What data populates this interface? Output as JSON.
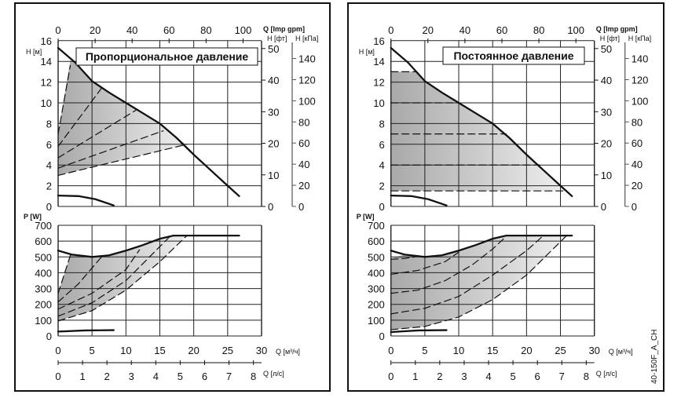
{
  "axes": {
    "h_m_label": "H [м]",
    "h_ft_label": "H [фт]",
    "h_kpa_label": "H [кПа]",
    "q_imp_label": "Q [Imp gpm]",
    "q_m3h_label": "Q [м³/ч]",
    "q_ls_label": "Q [л/с]",
    "p_label": "P [W]",
    "h_m_ticks": [
      "0",
      "2",
      "4",
      "6",
      "8",
      "10",
      "12",
      "14",
      "16"
    ],
    "h_ft_ticks": [
      "0",
      "10",
      "20",
      "30",
      "40",
      "50"
    ],
    "h_kpa_ticks": [
      "0",
      "20",
      "40",
      "60",
      "80",
      "100",
      "120",
      "140"
    ],
    "q_imp_ticks": [
      "0",
      "20",
      "40",
      "60",
      "80",
      "100"
    ],
    "q_m3h_ticks": [
      "0",
      "5",
      "10",
      "15",
      "20",
      "25",
      "30"
    ],
    "q_ls_ticks": [
      "0",
      "1",
      "2",
      "3",
      "4",
      "5",
      "6",
      "7",
      "8"
    ],
    "p_ticks": [
      "0",
      "100",
      "200",
      "300",
      "400",
      "500",
      "600",
      "700"
    ]
  },
  "panels": [
    {
      "title": "Пропорциональное давление"
    },
    {
      "title": "Постоянное давление"
    }
  ],
  "model_code": "40-150F_A_CH",
  "colors": {
    "curve": "#111111",
    "grid": "#222222",
    "shade_dark": "#a9a9a9",
    "shade_light": "#efefef"
  },
  "chart_data": [
    {
      "type": "line",
      "panel": 0,
      "title": "Пропорциональное давление",
      "xlabel": "Q [м³/ч]",
      "ylabel": "H [м]",
      "xlim": [
        0,
        30
      ],
      "ylim": [
        0,
        16
      ],
      "grid": true,
      "series": [
        {
          "style": "solid",
          "points": [
            [
              0,
              15.3
            ],
            [
              2.5,
              13.9
            ],
            [
              5,
              12.1
            ],
            [
              7.5,
              11
            ],
            [
              10,
              10
            ],
            [
              12.5,
              9
            ],
            [
              15,
              8
            ],
            [
              17.5,
              6.6
            ],
            [
              20,
              5
            ],
            [
              22.5,
              3.5
            ],
            [
              25,
              2
            ],
            [
              26.7,
              1
            ]
          ]
        },
        {
          "style": "solid",
          "points": [
            [
              0,
              1.05
            ],
            [
              3,
              1.0
            ],
            [
              5.5,
              0.7
            ],
            [
              8.2,
              0.1
            ]
          ]
        },
        {
          "style": "dashed",
          "points": [
            [
              0,
              3
            ],
            [
              19,
              6
            ]
          ]
        },
        {
          "style": "dashed",
          "points": [
            [
              0,
              3.7
            ],
            [
              15.5,
              7.3
            ]
          ]
        },
        {
          "style": "dashed",
          "points": [
            [
              0,
              4.7
            ],
            [
              11.5,
              9.3
            ]
          ]
        },
        {
          "style": "dashed",
          "points": [
            [
              0,
              5.8
            ],
            [
              6.5,
              11.5
            ]
          ]
        },
        {
          "style": "dashed",
          "points": [
            [
              0,
              7
            ],
            [
              1.8,
              13.6
            ]
          ]
        }
      ],
      "shaded_region": [
        [
          0,
          3
        ],
        [
          19,
          6
        ],
        [
          17.5,
          6.6
        ],
        [
          15,
          8
        ],
        [
          12.5,
          9
        ],
        [
          10,
          10
        ],
        [
          7.5,
          11
        ],
        [
          5,
          12.1
        ],
        [
          2.5,
          13.9
        ],
        [
          1.8,
          14.1
        ],
        [
          0,
          7
        ]
      ]
    },
    {
      "type": "line",
      "panel": 0,
      "xlabel": "Q [м³/ч]",
      "ylabel": "P [W]",
      "xlim": [
        0,
        30
      ],
      "ylim": [
        0,
        700
      ],
      "grid": true,
      "series": [
        {
          "style": "solid",
          "points": [
            [
              0,
              540
            ],
            [
              2,
              515
            ],
            [
              5,
              500
            ],
            [
              7.5,
              510
            ],
            [
              10,
              540
            ],
            [
              12.5,
              575
            ],
            [
              15,
              615
            ],
            [
              17,
              635
            ],
            [
              26.7,
              635
            ]
          ]
        },
        {
          "style": "solid",
          "points": [
            [
              0,
              28
            ],
            [
              4,
              35
            ],
            [
              8.2,
              37
            ]
          ]
        },
        {
          "style": "dashed",
          "points": [
            [
              0,
              270
            ],
            [
              1.8,
              510
            ]
          ]
        },
        {
          "style": "dashed",
          "points": [
            [
              0,
              215
            ],
            [
              3,
              330
            ],
            [
              6.5,
              505
            ]
          ]
        },
        {
          "style": "dashed",
          "points": [
            [
              0,
              170
            ],
            [
              5,
              270
            ],
            [
              10,
              420
            ],
            [
              12,
              545
            ]
          ]
        },
        {
          "style": "dashed",
          "points": [
            [
              0,
              125
            ],
            [
              5,
              210
            ],
            [
              10,
              350
            ],
            [
              16.5,
              630
            ]
          ]
        },
        {
          "style": "dashed",
          "points": [
            [
              0,
              95
            ],
            [
              5,
              160
            ],
            [
              10,
              290
            ],
            [
              15,
              470
            ],
            [
              19,
              635
            ]
          ]
        }
      ],
      "shaded_region": [
        [
          0,
          95
        ],
        [
          5,
          160
        ],
        [
          10,
          290
        ],
        [
          15,
          470
        ],
        [
          19,
          635
        ],
        [
          17,
          635
        ],
        [
          15,
          615
        ],
        [
          12.5,
          575
        ],
        [
          10,
          540
        ],
        [
          7.5,
          510
        ],
        [
          5,
          500
        ],
        [
          2,
          515
        ],
        [
          1.8,
          510
        ],
        [
          0,
          270
        ]
      ]
    },
    {
      "type": "line",
      "panel": 1,
      "title": "Постоянное давление",
      "xlabel": "Q [м³/ч]",
      "ylabel": "H [м]",
      "xlim": [
        0,
        30
      ],
      "ylim": [
        0,
        16
      ],
      "grid": true,
      "series": [
        {
          "style": "solid",
          "points": [
            [
              0,
              15.3
            ],
            [
              2.5,
              13.9
            ],
            [
              5,
              12.1
            ],
            [
              7.5,
              11
            ],
            [
              10,
              10
            ],
            [
              12.5,
              9
            ],
            [
              15,
              8
            ],
            [
              17.5,
              6.6
            ],
            [
              20,
              5
            ],
            [
              22.5,
              3.5
            ],
            [
              25,
              2
            ],
            [
              26.7,
              1
            ]
          ]
        },
        {
          "style": "solid",
          "points": [
            [
              0,
              1.05
            ],
            [
              3,
              1.0
            ],
            [
              5.5,
              0.7
            ],
            [
              8.2,
              0.1
            ]
          ]
        },
        {
          "style": "dashed",
          "points": [
            [
              0,
              13
            ],
            [
              3.6,
              13
            ]
          ]
        },
        {
          "style": "dashed",
          "points": [
            [
              0,
              10
            ],
            [
              10,
              10
            ]
          ]
        },
        {
          "style": "dashed",
          "points": [
            [
              0,
              7
            ],
            [
              17,
              7
            ]
          ]
        },
        {
          "style": "dashed",
          "points": [
            [
              0,
              4
            ],
            [
              22,
              4
            ]
          ]
        },
        {
          "style": "dashed",
          "points": [
            [
              0,
              1.5
            ],
            [
              25.8,
              1.5
            ]
          ]
        }
      ],
      "shaded_region": [
        [
          0,
          1.5
        ],
        [
          25.8,
          1.5
        ],
        [
          25,
          2
        ],
        [
          22.5,
          3.5
        ],
        [
          20,
          5
        ],
        [
          17.5,
          6.6
        ],
        [
          15,
          8
        ],
        [
          12.5,
          9
        ],
        [
          10,
          10
        ],
        [
          7.5,
          11
        ],
        [
          5,
          12.1
        ],
        [
          3.6,
          13
        ],
        [
          0,
          13
        ]
      ]
    },
    {
      "type": "line",
      "panel": 1,
      "xlabel": "Q [м³/ч]",
      "ylabel": "P [W]",
      "xlim": [
        0,
        30
      ],
      "ylim": [
        0,
        700
      ],
      "grid": true,
      "series": [
        {
          "style": "solid",
          "points": [
            [
              0,
              540
            ],
            [
              2,
              515
            ],
            [
              5,
              500
            ],
            [
              7.5,
              510
            ],
            [
              10,
              540
            ],
            [
              12.5,
              575
            ],
            [
              15,
              615
            ],
            [
              17,
              635
            ],
            [
              26.7,
              635
            ]
          ]
        },
        {
          "style": "solid",
          "points": [
            [
              0,
              25
            ],
            [
              4,
              35
            ],
            [
              8.2,
              37
            ]
          ]
        },
        {
          "style": "dashed",
          "points": [
            [
              0,
              485
            ],
            [
              2,
              490
            ],
            [
              3.5,
              500
            ]
          ]
        },
        {
          "style": "dashed",
          "points": [
            [
              0,
              390
            ],
            [
              4,
              415
            ],
            [
              8,
              470
            ],
            [
              10,
              530
            ]
          ]
        },
        {
          "style": "dashed",
          "points": [
            [
              0,
              270
            ],
            [
              4,
              290
            ],
            [
              8,
              350
            ],
            [
              12,
              450
            ],
            [
              15,
              550
            ],
            [
              17,
              630
            ]
          ]
        },
        {
          "style": "dashed",
          "points": [
            [
              0,
              140
            ],
            [
              5,
              175
            ],
            [
              10,
              250
            ],
            [
              15,
              385
            ],
            [
              20,
              540
            ],
            [
              22.5,
              635
            ]
          ]
        },
        {
          "style": "dashed",
          "points": [
            [
              0,
              40
            ],
            [
              5,
              60
            ],
            [
              10,
              120
            ],
            [
              15,
              230
            ],
            [
              20,
              385
            ],
            [
              25.8,
              630
            ]
          ]
        }
      ],
      "shaded_region": [
        [
          0,
          40
        ],
        [
          5,
          60
        ],
        [
          10,
          120
        ],
        [
          15,
          230
        ],
        [
          20,
          385
        ],
        [
          25.8,
          630
        ],
        [
          17,
          635
        ],
        [
          15,
          615
        ],
        [
          12.5,
          575
        ],
        [
          10,
          540
        ],
        [
          7.5,
          510
        ],
        [
          5,
          500
        ],
        [
          2,
          515
        ],
        [
          0,
          490
        ]
      ]
    }
  ]
}
